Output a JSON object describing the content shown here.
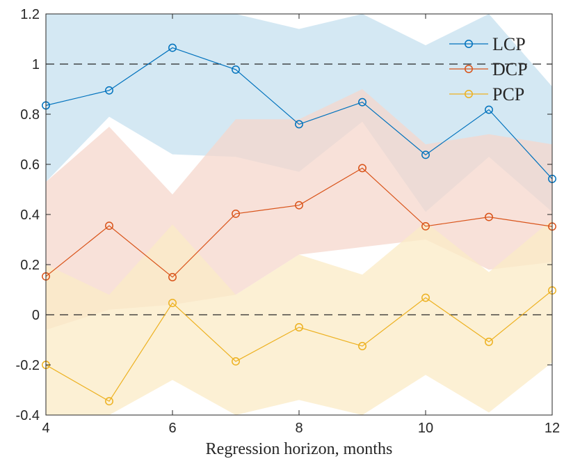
{
  "chart_data": {
    "type": "line",
    "title": "",
    "xlabel": "Regression horizon, months",
    "ylabel": "",
    "xlim": [
      4,
      12
    ],
    "ylim": [
      -0.4,
      1.2
    ],
    "xticks": [
      4,
      6,
      8,
      10,
      12
    ],
    "xtick_labels": [
      "4",
      "6",
      "8",
      "10",
      "12"
    ],
    "yticks": [
      -0.4,
      -0.2,
      0,
      0.2,
      0.4,
      0.6,
      0.8,
      1,
      1.2
    ],
    "ytick_labels": [
      "-0.4",
      "-0.2",
      "0",
      "0.2",
      "0.4",
      "0.6",
      "0.8",
      "1",
      "1.2"
    ],
    "grid": false,
    "legend_position": "top-right",
    "reference_lines": [
      0,
      1
    ],
    "x": [
      4,
      5,
      6,
      7,
      8,
      9,
      10,
      11,
      12
    ],
    "series": [
      {
        "name": "LCP",
        "color": "#0072BD",
        "band_color": "#C5E0EF",
        "values": [
          0.835,
          0.895,
          1.065,
          0.978,
          0.76,
          0.848,
          0.638,
          0.818,
          0.542
        ],
        "lower": [
          0.53,
          0.79,
          0.64,
          0.63,
          0.57,
          0.77,
          0.41,
          0.63,
          0.41
        ],
        "upper": [
          1.2,
          1.2,
          1.2,
          1.2,
          1.14,
          1.2,
          1.075,
          1.2,
          0.91
        ]
      },
      {
        "name": "DCP",
        "color": "#D95319",
        "band_color": "#F6D7CC",
        "values": [
          0.153,
          0.355,
          0.15,
          0.403,
          0.437,
          0.585,
          0.353,
          0.39,
          0.352
        ],
        "lower": [
          -0.06,
          0.02,
          0.04,
          0.08,
          0.24,
          0.27,
          0.3,
          0.18,
          0.21
        ],
        "upper": [
          0.53,
          0.75,
          0.48,
          0.78,
          0.78,
          0.9,
          0.68,
          0.72,
          0.68
        ]
      },
      {
        "name": "PCP",
        "color": "#EDB120",
        "band_color": "#FBEBC5",
        "values": [
          -0.2,
          -0.345,
          0.047,
          -0.186,
          -0.05,
          -0.125,
          0.068,
          -0.108,
          0.097
        ],
        "lower": [
          -0.4,
          -0.4,
          -0.26,
          -0.4,
          -0.34,
          -0.4,
          -0.24,
          -0.39,
          -0.19
        ],
        "upper": [
          0.2,
          0.08,
          0.36,
          0.08,
          0.24,
          0.16,
          0.37,
          0.17,
          0.38
        ]
      }
    ]
  }
}
